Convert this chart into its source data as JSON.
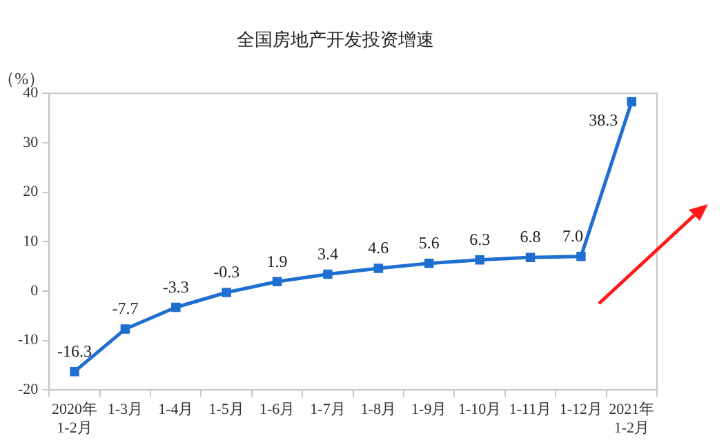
{
  "chart_data": {
    "type": "line",
    "title": "全国房地产开发投资增速",
    "ylabel": "（%）",
    "categories": [
      "2020年\n1-2月",
      "1-3月",
      "1-4月",
      "1-5月",
      "1-6月",
      "1-7月",
      "1-8月",
      "1-9月",
      "1-10月",
      "1-11月",
      "1-12月",
      "2021年\n1-2月"
    ],
    "series": [
      {
        "color": "#1f6fd1",
        "values": [
          -16.3,
          -7.7,
          -3.3,
          -0.3,
          1.9,
          3.4,
          4.6,
          5.6,
          6.3,
          6.8,
          7.0,
          38.3
        ]
      }
    ],
    "value_labels": [
      "-16.3",
      "-7.7",
      "-3.3",
      "-0.3",
      "1.9",
      "3.4",
      "4.6",
      "5.6",
      "6.3",
      "6.8",
      "7.0",
      "38.3"
    ],
    "ylim": [
      -20,
      40
    ],
    "yticks": [
      -20,
      -10,
      0,
      10,
      20,
      30,
      40
    ],
    "grid": false,
    "legend": false,
    "marker": "square",
    "line_style": "solid"
  }
}
